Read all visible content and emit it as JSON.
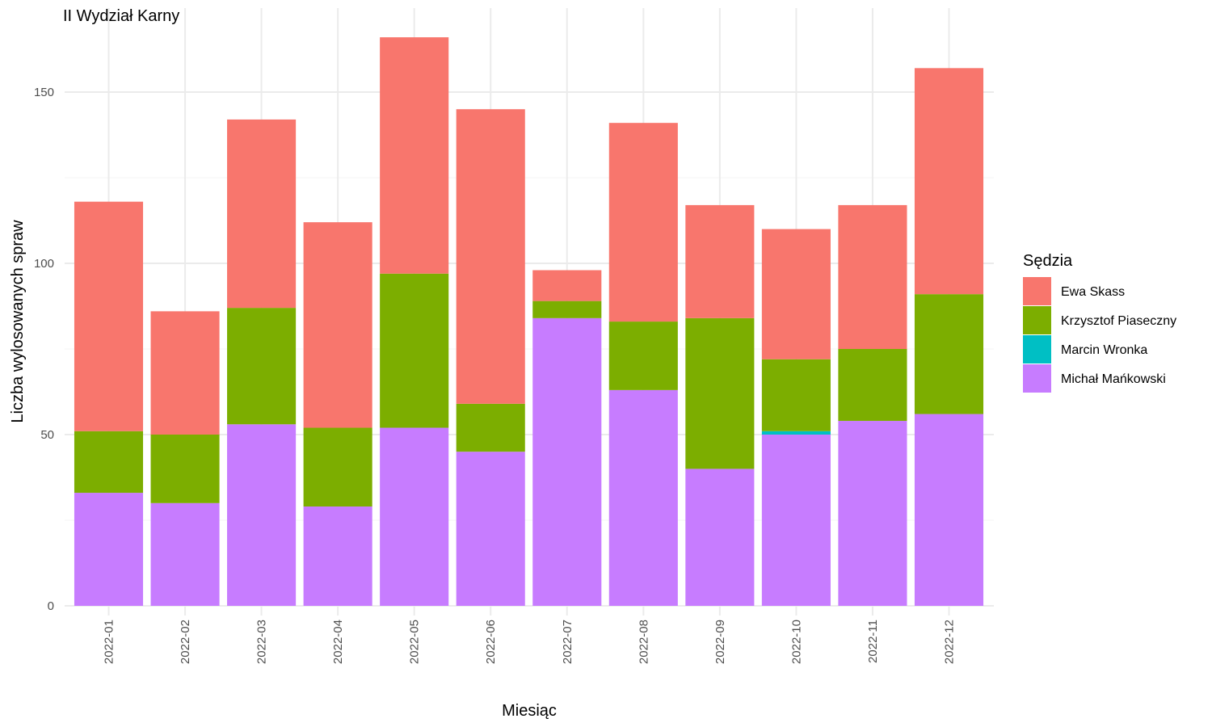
{
  "chart_data": {
    "type": "bar",
    "stacked": true,
    "title": "II Wydział Karny",
    "xlabel": "Miesiąc",
    "ylabel": "Liczba wylosowanych spraw",
    "ylim": [
      0,
      168
    ],
    "yticks": [
      0,
      50,
      100,
      150
    ],
    "grid": true,
    "legend_position": "right",
    "legend_title": "Sędzia",
    "categories": [
      "2022-01",
      "2022-02",
      "2022-03",
      "2022-04",
      "2022-05",
      "2022-06",
      "2022-07",
      "2022-08",
      "2022-09",
      "2022-10",
      "2022-11",
      "2022-12"
    ],
    "series": [
      {
        "name": "Michał Mańkowski",
        "color": "#C77CFF",
        "values": [
          33,
          30,
          53,
          29,
          52,
          45,
          84,
          63,
          40,
          50,
          54,
          56
        ]
      },
      {
        "name": "Marcin Wronka",
        "color": "#00BFC4",
        "values": [
          0,
          0,
          0,
          0,
          0,
          0,
          0,
          0,
          0,
          1,
          0,
          0
        ]
      },
      {
        "name": "Krzysztof Piaseczny",
        "color": "#7CAE00",
        "values": [
          18,
          20,
          34,
          23,
          45,
          14,
          5,
          20,
          44,
          21,
          21,
          35
        ]
      },
      {
        "name": "Ewa Skass",
        "color": "#F8766D",
        "values": [
          67,
          36,
          55,
          60,
          69,
          86,
          9,
          58,
          33,
          38,
          42,
          66
        ]
      }
    ],
    "legend_order": [
      "Ewa Skass",
      "Krzysztof Piaseczny",
      "Marcin Wronka",
      "Michał Mańkowski"
    ]
  }
}
